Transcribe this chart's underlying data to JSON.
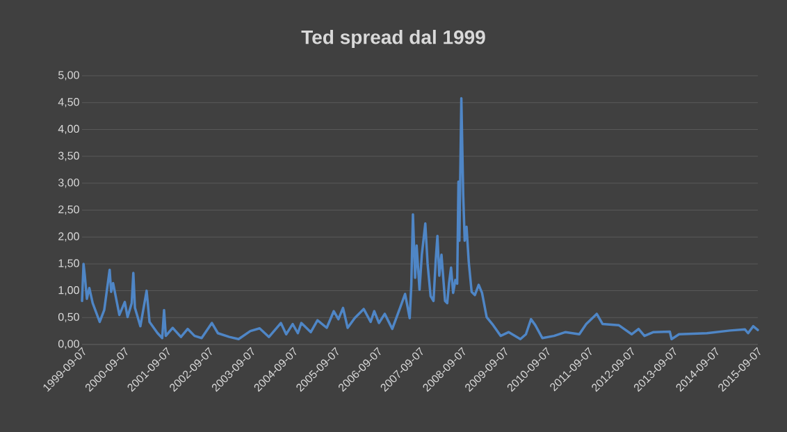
{
  "chart_data": {
    "type": "line",
    "title": "Ted spread dal 1999",
    "color": "#4f86c6",
    "grid": "y",
    "xlim": [
      "1999-09-07",
      "2015-09-12"
    ],
    "xticks": [
      "1999-09-07",
      "2000-09-07",
      "2001-09-07",
      "2002-09-07",
      "2003-09-07",
      "2004-09-07",
      "2005-09-07",
      "2006-09-07",
      "2007-09-07",
      "2008-09-07",
      "2009-09-07",
      "2010-09-07",
      "2011-09-07",
      "2012-09-07",
      "2013-09-07",
      "2014-09-07",
      "2015-09-07"
    ],
    "ylim": [
      0,
      5
    ],
    "yticks": [
      {
        "value": 0,
        "label": "0,00"
      },
      {
        "value": 0.5,
        "label": "0,50"
      },
      {
        "value": 1,
        "label": "1,00"
      },
      {
        "value": 1.5,
        "label": "1,50"
      },
      {
        "value": 2,
        "label": "2,00"
      },
      {
        "value": 2.5,
        "label": "2,50"
      },
      {
        "value": 3,
        "label": "3,00"
      },
      {
        "value": 3.5,
        "label": "3,50"
      },
      {
        "value": 4,
        "label": "4,00"
      },
      {
        "value": 4.5,
        "label": "4,50"
      },
      {
        "value": 5,
        "label": "5,00"
      }
    ],
    "x": [
      "1999-09-07",
      "1999-09-20",
      "1999-10-01",
      "1999-10-19",
      "1999-11-09",
      "1999-12-08",
      "2000-02-07",
      "2000-03-17",
      "2000-05-03",
      "2000-05-16",
      "2000-06-02",
      "2000-07-26",
      "2000-09-11",
      "2000-10-05",
      "2000-11-10",
      "2000-11-24",
      "2000-12-08",
      "2001-01-24",
      "2001-03-19",
      "2001-04-13",
      "2001-06-22",
      "2001-08-01",
      "2001-08-17",
      "2001-09-01",
      "2001-10-30",
      "2002-01-10",
      "2002-03-09",
      "2002-05-08",
      "2002-07-08",
      "2002-10-05",
      "2002-11-26",
      "2003-03-05",
      "2003-05-24",
      "2003-09-03",
      "2003-11-22",
      "2004-02-11",
      "2004-05-24",
      "2004-07-09",
      "2004-09-03",
      "2004-10-18",
      "2004-11-17",
      "2005-02-07",
      "2005-04-06",
      "2005-06-25",
      "2005-08-25",
      "2005-10-04",
      "2005-11-13",
      "2005-12-23",
      "2006-02-22",
      "2006-05-11",
      "2006-07-10",
      "2006-08-10",
      "2006-09-20",
      "2006-11-09",
      "2007-01-13",
      "2007-03-28",
      "2007-05-04",
      "2007-06-13",
      "2007-06-27",
      "2007-07-11",
      "2007-07-30",
      "2007-08-12",
      "2007-09-06",
      "2007-09-26",
      "2007-10-26",
      "2007-11-15",
      "2007-12-11",
      "2008-01-05",
      "2008-01-25",
      "2008-02-08",
      "2008-02-24",
      "2008-03-14",
      "2008-04-14",
      "2008-05-03",
      "2008-05-19",
      "2008-06-05",
      "2008-06-23",
      "2008-07-12",
      "2008-07-28",
      "2008-08-08",
      "2008-08-16",
      "2008-09-02",
      "2008-09-18",
      "2008-10-01",
      "2008-10-17",
      "2008-11-05",
      "2008-11-30",
      "2008-12-28",
      "2009-01-30",
      "2009-02-28",
      "2009-04-09",
      "2009-05-28",
      "2009-08-08",
      "2009-10-17",
      "2010-01-26",
      "2010-03-15",
      "2010-04-28",
      "2010-06-04",
      "2010-08-04",
      "2010-11-13",
      "2011-02-21",
      "2011-06-20",
      "2011-08-19",
      "2011-11-18",
      "2012-01-08",
      "2012-05-26",
      "2012-09-15",
      "2012-11-14",
      "2013-01-04",
      "2013-03-23",
      "2013-08-11",
      "2013-08-27",
      "2013-10-30",
      "2014-06-28",
      "2015-01-15",
      "2015-05-24",
      "2015-06-20",
      "2015-08-03",
      "2015-09-12"
    ],
    "values": [
      0.81,
      1.5,
      1.28,
      0.85,
      1.05,
      0.77,
      0.42,
      0.64,
      1.39,
      0.98,
      1.14,
      0.55,
      0.79,
      0.51,
      0.77,
      1.33,
      0.68,
      0.34,
      1.0,
      0.42,
      0.21,
      0.12,
      0.64,
      0.16,
      0.31,
      0.14,
      0.29,
      0.16,
      0.12,
      0.4,
      0.21,
      0.14,
      0.1,
      0.25,
      0.3,
      0.14,
      0.4,
      0.19,
      0.38,
      0.21,
      0.4,
      0.23,
      0.45,
      0.31,
      0.62,
      0.47,
      0.68,
      0.31,
      0.49,
      0.66,
      0.42,
      0.62,
      0.4,
      0.57,
      0.29,
      0.72,
      0.94,
      0.49,
      1.11,
      2.42,
      1.24,
      1.84,
      1.02,
      1.67,
      2.25,
      1.5,
      0.9,
      0.81,
      1.59,
      2.02,
      1.28,
      1.67,
      0.81,
      0.77,
      1.15,
      1.43,
      0.96,
      1.2,
      1.13,
      3.03,
      1.93,
      4.58,
      2.79,
      1.93,
      2.19,
      1.54,
      0.98,
      0.92,
      1.11,
      0.96,
      0.51,
      0.38,
      0.16,
      0.23,
      0.1,
      0.19,
      0.47,
      0.36,
      0.12,
      0.16,
      0.23,
      0.19,
      0.38,
      0.57,
      0.38,
      0.36,
      0.19,
      0.29,
      0.16,
      0.23,
      0.24,
      0.1,
      0.19,
      0.21,
      0.26,
      0.28,
      0.21,
      0.34,
      0.27
    ]
  }
}
